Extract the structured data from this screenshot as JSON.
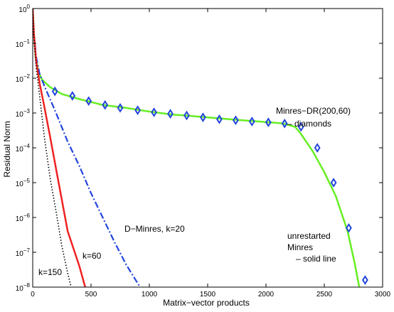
{
  "chart_data": {
    "type": "line",
    "xlabel": "Matrix−vector products",
    "ylabel": "Residual Norm",
    "xlim": [
      0,
      3000
    ],
    "ylim": [
      1e-08,
      1
    ],
    "yscale": "log",
    "grid": false,
    "x_ticks": [
      0,
      500,
      1000,
      1500,
      2000,
      2500,
      3000
    ],
    "x_tick_labels": [
      "0",
      "500",
      "1000",
      "1500",
      "2000",
      "2500",
      "3000"
    ],
    "y_ticks": [
      1e-08,
      1e-07,
      1e-06,
      1e-05,
      0.0001,
      0.001,
      0.01,
      0.1,
      1
    ],
    "y_tick_labels": [
      {
        "base": "10",
        "exp": "−8"
      },
      {
        "base": "10",
        "exp": "−7"
      },
      {
        "base": "10",
        "exp": "−6"
      },
      {
        "base": "10",
        "exp": "−5"
      },
      {
        "base": "10",
        "exp": "−4"
      },
      {
        "base": "10",
        "exp": "−3"
      },
      {
        "base": "10",
        "exp": "−2"
      },
      {
        "base": "10",
        "exp": "−1"
      },
      {
        "base": "10",
        "exp": "0"
      }
    ],
    "series": [
      {
        "style": "solid",
        "color": "#66ee22",
        "points": [
          [
            0,
            1.0
          ],
          [
            10,
            0.2
          ],
          [
            25,
            0.04
          ],
          [
            50,
            0.015
          ],
          [
            80,
            0.009
          ],
          [
            150,
            0.0055
          ],
          [
            250,
            0.0035
          ],
          [
            400,
            0.0025
          ],
          [
            600,
            0.0017
          ],
          [
            800,
            0.0014
          ],
          [
            1000,
            0.0011
          ],
          [
            1200,
            0.0009
          ],
          [
            1400,
            0.0008
          ],
          [
            1600,
            0.0007
          ],
          [
            1800,
            0.00062
          ],
          [
            2000,
            0.00055
          ],
          [
            2150,
            0.0005
          ],
          [
            2250,
            0.0004
          ],
          [
            2300,
            0.00025
          ],
          [
            2400,
            8e-05
          ],
          [
            2500,
            2e-05
          ],
          [
            2600,
            4e-06
          ],
          [
            2700,
            4e-07
          ],
          [
            2760,
            5e-08
          ],
          [
            2800,
            1e-08
          ]
        ]
      },
      {
        "style": "dashdot",
        "color": "#2244dd",
        "points": [
          [
            0,
            1.0
          ],
          [
            10,
            0.2
          ],
          [
            30,
            0.04
          ],
          [
            60,
            0.013
          ],
          [
            100,
            0.006
          ],
          [
            200,
            0.001
          ],
          [
            300,
            0.00015
          ],
          [
            400,
            3e-05
          ],
          [
            500,
            5e-06
          ],
          [
            600,
            1e-06
          ],
          [
            700,
            2e-07
          ],
          [
            800,
            4.5e-08
          ],
          [
            920,
            1e-08
          ]
        ]
      },
      {
        "style": "solid",
        "color": "#ee2222",
        "points": [
          [
            0,
            1.0
          ],
          [
            10,
            0.2
          ],
          [
            30,
            0.03
          ],
          [
            60,
            0.007
          ],
          [
            100,
            0.0015
          ],
          [
            150,
            0.0002
          ],
          [
            200,
            2.5e-05
          ],
          [
            300,
            4e-07
          ],
          [
            400,
            4e-08
          ],
          [
            450,
            1e-08
          ]
        ]
      },
      {
        "style": "dotted",
        "color": "#000000",
        "points": [
          [
            0,
            1.0
          ],
          [
            10,
            0.15
          ],
          [
            30,
            0.02
          ],
          [
            60,
            0.003
          ],
          [
            100,
            0.0002
          ],
          [
            150,
            1.3e-05
          ],
          [
            200,
            1.5e-06
          ],
          [
            250,
            1.5e-07
          ],
          [
            300,
            2.5e-08
          ],
          [
            330,
            1e-08
          ]
        ]
      }
    ],
    "markers": {
      "shape": "diamond",
      "color": "#2244dd",
      "points": [
        [
          190,
          0.0042
        ],
        [
          340,
          0.0031
        ],
        [
          480,
          0.0022
        ],
        [
          620,
          0.0017
        ],
        [
          750,
          0.0014
        ],
        [
          900,
          0.0012
        ],
        [
          1040,
          0.00105
        ],
        [
          1180,
          0.00095
        ],
        [
          1320,
          0.00085
        ],
        [
          1460,
          0.00075
        ],
        [
          1600,
          0.00066
        ],
        [
          1740,
          0.00062
        ],
        [
          1880,
          0.00057
        ],
        [
          2020,
          0.00054
        ],
        [
          2160,
          0.0005
        ],
        [
          2300,
          0.0004
        ],
        [
          2440,
          0.0001
        ],
        [
          2580,
          1e-05
        ],
        [
          2710,
          5e-07
        ],
        [
          2850,
          1.6e-08
        ]
      ]
    },
    "annotations": [
      {
        "id": "mdr1",
        "text": "Minres−DR(200,60)"
      },
      {
        "id": "mdr2",
        "text": "– diamonds"
      },
      {
        "id": "dmin",
        "text": "D−Minres, k=20"
      },
      {
        "id": "un1",
        "text": "unrestarted"
      },
      {
        "id": "un2",
        "text": "Minres"
      },
      {
        "id": "un3",
        "text": "– solid line"
      },
      {
        "id": "k60",
        "text": "k=60"
      },
      {
        "id": "k150",
        "text": "k=150"
      }
    ]
  }
}
